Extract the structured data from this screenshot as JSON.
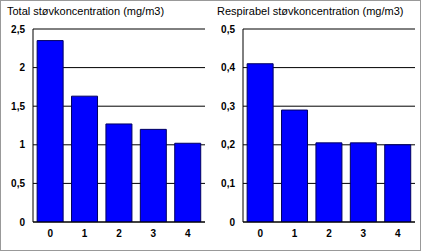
{
  "chart_data": [
    {
      "type": "bar",
      "title": "Total støvkoncentration (mg/m3)",
      "categories": [
        "0",
        "1",
        "2",
        "3",
        "4"
      ],
      "values": [
        2.35,
        1.63,
        1.27,
        1.2,
        1.02
      ],
      "color": "#0000ff",
      "ylim": [
        0,
        2.5
      ],
      "yticks": [
        0,
        {
          "value": 0.5,
          "label": "0,5"
        },
        1,
        {
          "value": 1.5,
          "label": "1,5"
        },
        2,
        {
          "value": 2.5,
          "label": "2,5"
        }
      ],
      "grid": true
    },
    {
      "type": "bar",
      "title": "Respirabel støvkoncentration (mg/m3)",
      "categories": [
        "0",
        "1",
        "2",
        "3",
        "4"
      ],
      "values": [
        0.41,
        0.29,
        0.205,
        0.205,
        0.2
      ],
      "color": "#0000ff",
      "ylim": [
        0,
        0.5
      ],
      "yticks": [
        0,
        {
          "value": 0.1,
          "label": "0,1"
        },
        {
          "value": 0.2,
          "label": "0,2"
        },
        {
          "value": 0.3,
          "label": "0,3"
        },
        {
          "value": 0.4,
          "label": "0,4"
        },
        {
          "value": 0.5,
          "label": "0,5"
        }
      ],
      "grid": true
    }
  ]
}
